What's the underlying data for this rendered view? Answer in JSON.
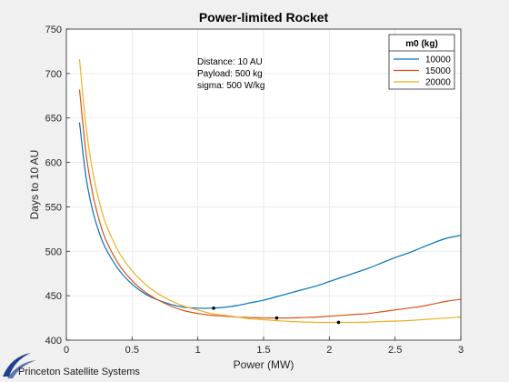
{
  "branding": {
    "company": "Princeton Satellite Systems",
    "logo": "princeton-satellite-systems-logo",
    "logo_color": "#1f3f8f"
  },
  "chart_data": {
    "type": "line",
    "title": "Power-limited Rocket",
    "xlabel": "Power (MW)",
    "ylabel": "Days to 10 AU",
    "xlim": [
      0,
      3
    ],
    "ylim": [
      400,
      750
    ],
    "xticks": [
      0,
      0.5,
      1,
      1.5,
      2,
      2.5,
      3
    ],
    "xtick_labels": [
      "0",
      "0.5",
      "1",
      "1.5",
      "2",
      "2.5",
      "3"
    ],
    "yticks": [
      400,
      450,
      500,
      550,
      600,
      650,
      700,
      750
    ],
    "ytick_labels": [
      "400",
      "450",
      "500",
      "550",
      "600",
      "650",
      "700",
      "750"
    ],
    "grid": true,
    "legend": {
      "title": "m0 (kg)",
      "position": "top-right"
    },
    "annotations": [
      "Distance: 10 AU",
      "Payload: 500 kg",
      "sigma: 500 W/kg"
    ],
    "x": [
      0.1,
      0.15,
      0.2,
      0.25,
      0.3,
      0.4,
      0.5,
      0.6,
      0.7,
      0.8,
      0.9,
      1.0,
      1.1,
      1.2,
      1.3,
      1.4,
      1.5,
      1.6,
      1.7,
      1.8,
      1.9,
      2.0,
      2.1,
      2.2,
      2.3,
      2.4,
      2.5,
      2.6,
      2.7,
      2.8,
      2.9,
      3.0
    ],
    "series": [
      {
        "name": "10000",
        "color": "#0072bd",
        "values": [
          645,
          583,
          546,
          521,
          503,
          479,
          463,
          452,
          445,
          440,
          437,
          436,
          436,
          437,
          439,
          442,
          445,
          449,
          453,
          457,
          461,
          466,
          471,
          476,
          481,
          487,
          493,
          498,
          504,
          510,
          515,
          518
        ],
        "optimum": {
          "x": 1.12,
          "y": 436
        }
      },
      {
        "name": "15000",
        "color": "#d95319",
        "values": [
          682,
          610,
          565,
          535,
          513,
          485,
          467,
          454,
          445,
          438,
          433,
          430,
          428,
          427,
          426,
          425.5,
          425,
          425,
          425,
          425.5,
          426,
          427,
          428,
          429,
          430,
          432,
          434,
          436,
          438,
          441,
          444,
          446
        ],
        "optimum": {
          "x": 1.6,
          "y": 425
        }
      },
      {
        "name": "20000",
        "color": "#edb120",
        "values": [
          716,
          640,
          590,
          556,
          531,
          499,
          478,
          463,
          452,
          444,
          438,
          434,
          430,
          428,
          426,
          424,
          423,
          422,
          421,
          420.5,
          420,
          420,
          420,
          420,
          420.3,
          421,
          421.5,
          422,
          423,
          424,
          425,
          426
        ],
        "optimum": {
          "x": 2.07,
          "y": 420
        }
      }
    ]
  }
}
